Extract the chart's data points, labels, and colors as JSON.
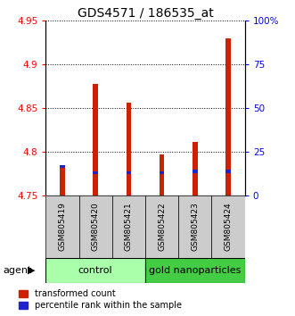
{
  "title": "GDS4571 / 186535_at",
  "samples": [
    "GSM805419",
    "GSM805420",
    "GSM805421",
    "GSM805422",
    "GSM805423",
    "GSM805424"
  ],
  "red_values": [
    4.785,
    4.878,
    4.856,
    4.797,
    4.812,
    4.93
  ],
  "blue_top": [
    4.785,
    4.778,
    4.778,
    4.778,
    4.78,
    4.78
  ],
  "blue_bottom": [
    4.782,
    4.775,
    4.775,
    4.775,
    4.776,
    4.776
  ],
  "ymin": 4.75,
  "ymax": 4.95,
  "yticks": [
    4.75,
    4.8,
    4.85,
    4.9,
    4.95
  ],
  "ytick_labels": [
    "4.75",
    "4.8",
    "4.85",
    "4.9",
    "4.95"
  ],
  "right_yticks": [
    0,
    25,
    50,
    75,
    100
  ],
  "right_ytick_labels": [
    "0",
    "25",
    "50",
    "75",
    "100%"
  ],
  "control_label": "control",
  "gold_label": "gold nanoparticles",
  "agent_label": "agent",
  "legend_red": "transformed count",
  "legend_blue": "percentile rank within the sample",
  "bar_width": 0.15,
  "red_color": "#cc2200",
  "blue_color": "#2222cc",
  "control_bg": "#aaffaa",
  "gold_bg": "#44cc44",
  "sample_bg": "#cccccc",
  "title_fontsize": 10,
  "tick_fontsize": 7.5,
  "legend_fontsize": 7,
  "sample_fontsize": 6.5,
  "agent_fontsize": 8
}
